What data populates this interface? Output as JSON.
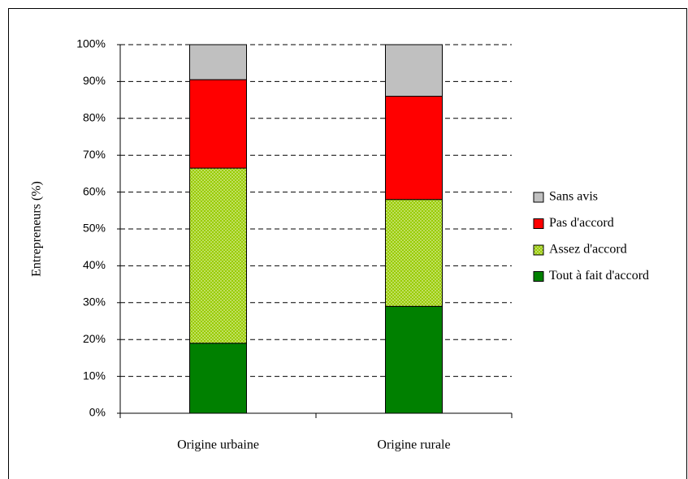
{
  "chart_data": {
    "type": "stacked_bar",
    "y_label": "Entrepreneurs (%)",
    "categories": [
      "Origine urbaine",
      "Origine rurale"
    ],
    "series": [
      {
        "name": "Tout à fait d'accord",
        "color": "#008000",
        "values": [
          19,
          29
        ]
      },
      {
        "name": "Assez d'accord",
        "color": "#99cc00",
        "pattern": "crosshatch",
        "values": [
          47.5,
          29
        ]
      },
      {
        "name": "Pas d'accord",
        "color": "#ff0000",
        "values": [
          24,
          28
        ]
      },
      {
        "name": "Sans avis",
        "color": "#c0c0c0",
        "values": [
          9.5,
          14
        ]
      }
    ],
    "ylim": [
      0,
      100
    ],
    "yticks": [
      {
        "value": 0,
        "label": "0%"
      },
      {
        "value": 10,
        "label": "10%"
      },
      {
        "value": 20,
        "label": "20%"
      },
      {
        "value": 30,
        "label": "30%"
      },
      {
        "value": 40,
        "label": "40%"
      },
      {
        "value": 50,
        "label": "50%"
      },
      {
        "value": 60,
        "label": "60%"
      },
      {
        "value": 70,
        "label": "70%"
      },
      {
        "value": 80,
        "label": "80%"
      },
      {
        "value": 90,
        "label": "90%"
      },
      {
        "value": 100,
        "label": "100%"
      }
    ],
    "grid": true,
    "legend": "right"
  }
}
